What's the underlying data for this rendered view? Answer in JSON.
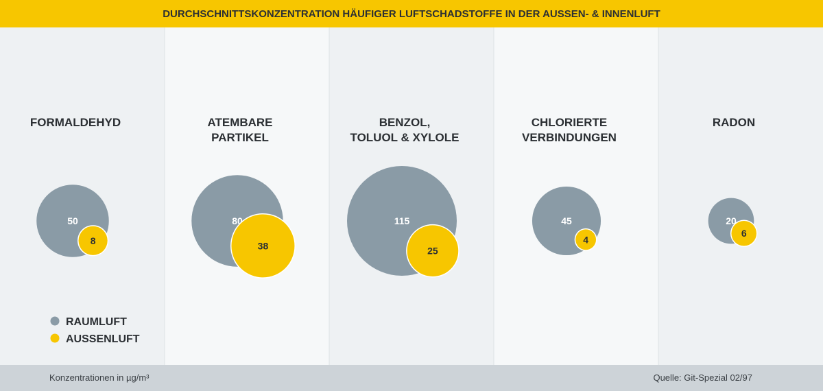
{
  "title": "DURCHSCHNITTSKONZENTRATION HÄUFIGER LUFTSCHADSTOFFE IN DER AUSSEN- & INNENLUFT",
  "colors": {
    "header": "#f7c600",
    "raumluft": "#8a9ba6",
    "aussenluft": "#f7c600",
    "footer": "#cdd3d8",
    "panel_even": "#eef1f3",
    "panel_odd": "#f6f8f9",
    "text": "#2b2f33"
  },
  "chart_data": {
    "type": "bubble",
    "title": "DURCHSCHNITTSKONZENTRATION HÄUFIGER LUFTSCHADSTOFFE IN DER AUSSEN- & INNENLUFT",
    "unit": "µg/m³",
    "categories": [
      [
        "FORMALDEHYD"
      ],
      [
        "ATEMBARE",
        "PARTIKEL"
      ],
      [
        "BENZOL,",
        "TOLUOL & XYLOLE"
      ],
      [
        "CHLORIERTE",
        "VERBINDUNGEN"
      ],
      [
        "RADON"
      ]
    ],
    "series": [
      {
        "name": "RAUMLUFT",
        "values": [
          50,
          80,
          115,
          45,
          20
        ]
      },
      {
        "name": "AUSSENLUFT",
        "values": [
          8,
          38,
          25,
          4,
          6
        ]
      }
    ],
    "legend_position": "bottom-left"
  },
  "footer": {
    "note": "Konzentrationen in µg/m³",
    "source": "Quelle: Git-Spezial 02/97"
  }
}
